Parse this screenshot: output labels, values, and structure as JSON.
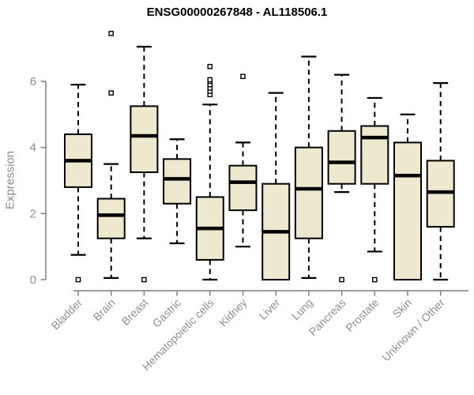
{
  "title": "ENSG00000267848 - AL118506.1",
  "y_axis": {
    "label": "Expression",
    "ticks": [
      0,
      2,
      4,
      6
    ]
  },
  "colors": {
    "box_fill": "#ede8ce",
    "box_border": "#000000",
    "median": "#000000",
    "whisker": "#000000",
    "axis": "#7f7f7f",
    "tick_label": "#8f8f8f",
    "title": "#000000",
    "background": "#ffffff"
  },
  "chart_data": {
    "type": "boxplot",
    "title": "ENSG00000267848 - AL118506.1",
    "xlabel": "",
    "ylabel": "Expression",
    "ylim": [
      0,
      7.6
    ],
    "yticks": [
      0,
      2,
      4,
      6
    ],
    "grid": false,
    "legend": "none",
    "categories": [
      "Bladder",
      "Brain",
      "Breast",
      "Gastric",
      "Hematopoietic cells",
      "Kidney",
      "Liver",
      "Lung",
      "Pancreas",
      "Prostate",
      "Skin",
      "Unknown / Other"
    ],
    "boxes": [
      {
        "category": "Bladder",
        "whisker_low": 0.75,
        "q1": 2.8,
        "median": 3.6,
        "q3": 4.4,
        "whisker_high": 5.9,
        "outliers": [
          0
        ]
      },
      {
        "category": "Brain",
        "whisker_low": 0.05,
        "q1": 1.25,
        "median": 1.95,
        "q3": 2.45,
        "whisker_high": 3.5,
        "outliers": [
          5.65,
          7.45
        ]
      },
      {
        "category": "Breast",
        "whisker_low": 1.25,
        "q1": 3.25,
        "median": 4.35,
        "q3": 5.25,
        "whisker_high": 7.05,
        "outliers": [
          0
        ]
      },
      {
        "category": "Gastric",
        "whisker_low": 1.1,
        "q1": 2.3,
        "median": 3.05,
        "q3": 3.65,
        "whisker_high": 4.25,
        "outliers": []
      },
      {
        "category": "Hematopoietic cells",
        "whisker_low": 0,
        "q1": 0.6,
        "median": 1.55,
        "q3": 2.5,
        "whisker_high": 5.3,
        "outliers": [
          5.6,
          5.7,
          5.8,
          5.9,
          6.0,
          6.05,
          6.45
        ]
      },
      {
        "category": "Kidney",
        "whisker_low": 1.0,
        "q1": 2.1,
        "median": 2.95,
        "q3": 3.45,
        "whisker_high": 4.15,
        "outliers": [
          6.15
        ]
      },
      {
        "category": "Liver",
        "whisker_low": 0,
        "q1": 0,
        "median": 1.45,
        "q3": 2.9,
        "whisker_high": 5.65,
        "outliers": []
      },
      {
        "category": "Lung",
        "whisker_low": 0.05,
        "q1": 1.25,
        "median": 2.75,
        "q3": 4.0,
        "whisker_high": 6.75,
        "outliers": []
      },
      {
        "category": "Pancreas",
        "whisker_low": 2.65,
        "q1": 2.9,
        "median": 3.55,
        "q3": 4.5,
        "whisker_high": 6.2,
        "outliers": [
          0
        ]
      },
      {
        "category": "Prostate",
        "whisker_low": 0.85,
        "q1": 2.9,
        "median": 4.3,
        "q3": 4.65,
        "whisker_high": 5.5,
        "outliers": [
          0
        ]
      },
      {
        "category": "Skin",
        "whisker_low": 0,
        "q1": 0,
        "median": 3.15,
        "q3": 4.15,
        "whisker_high": 5.0,
        "outliers": []
      },
      {
        "category": "Unknown / Other",
        "whisker_low": 0,
        "q1": 1.6,
        "median": 2.65,
        "q3": 3.6,
        "whisker_high": 5.95,
        "outliers": []
      }
    ]
  }
}
